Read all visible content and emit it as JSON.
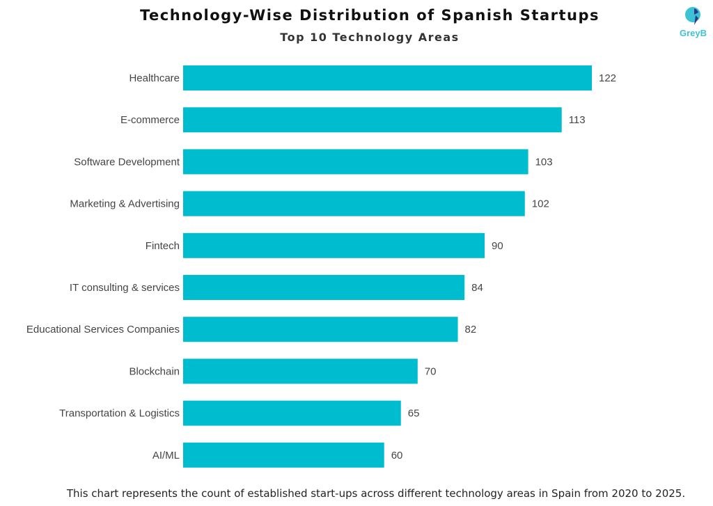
{
  "chart_data": {
    "type": "bar",
    "orientation": "horizontal",
    "title": "Technology-Wise Distribution of Spanish Startups",
    "subtitle": "Top 10 Technology Areas",
    "categories": [
      "Healthcare",
      "E-commerce",
      "Software Development",
      "Marketing & Advertising",
      "Fintech",
      "IT consulting & services",
      "Educational Services Companies",
      "Blockchain",
      "Transportation & Logistics",
      "AI/ML"
    ],
    "values": [
      122,
      113,
      103,
      102,
      90,
      84,
      82,
      70,
      65,
      60
    ],
    "xlim": [
      0,
      122
    ],
    "grid": false,
    "bar_color": "#00BCCF",
    "data_labels": true
  },
  "footer": "This chart represents the count of established start-ups across different technology areas in Spain from 2020 to 2025.",
  "logo": {
    "text": "GreyB",
    "colors": [
      "#3cc3d3",
      "#2b3a8c"
    ]
  }
}
